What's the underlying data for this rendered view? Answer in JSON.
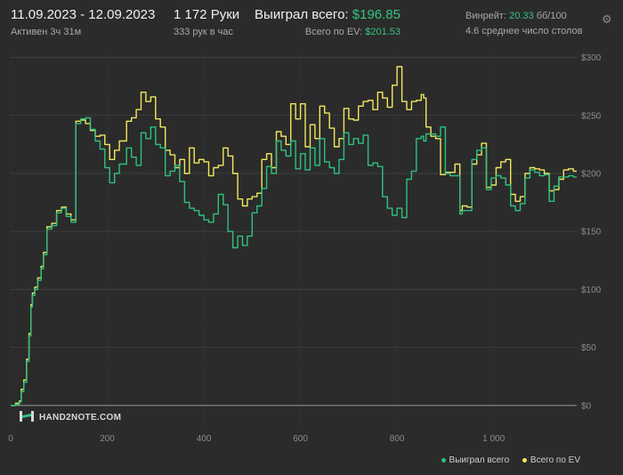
{
  "header": {
    "date_range": "11.09.2023 - 12.09.2023",
    "active_time": "Активен 3ч 31м",
    "hands_label": "1 172 Руки",
    "hands_rate": "333 рук в час",
    "won_label": "Выиграл всего:",
    "won_value": "$196.85",
    "ev_label": "Всего по EV:",
    "ev_value": "$201.53",
    "winrate_label": "Винрейт:",
    "winrate_value": "20.33",
    "winrate_unit": "бб/100",
    "tables_text": "4.6 среднее число столов"
  },
  "logo": {
    "text": "HAND2NOTE.COM"
  },
  "icons": {
    "settings": "gear-icon",
    "logo": "hand2note-logo-icon"
  },
  "colors": {
    "background": "#2b2b2b",
    "won": "#2ec27e",
    "ev": "#f2e85c",
    "grid": "#4a4a4a",
    "axis_text": "#8c8c8c",
    "accent": "#33c481"
  },
  "chart_data": {
    "type": "line",
    "x_ticks": [
      0,
      200,
      400,
      600,
      800,
      1000
    ],
    "x_tick_labels": [
      "0",
      "200",
      "400",
      "600",
      "800",
      "1 000"
    ],
    "y_ticks": [
      0,
      50,
      100,
      150,
      200,
      250,
      300
    ],
    "y_tick_labels": [
      "$0",
      "$50",
      "$100",
      "$150",
      "$200",
      "$250",
      "$300"
    ],
    "xlim": [
      0,
      1172
    ],
    "ylim": [
      -20,
      305
    ],
    "grid": true,
    "legend_position": "bottom-right",
    "series": [
      {
        "name": "Выиграл всего",
        "color": "#2ec27e",
        "x": [
          0,
          10,
          18,
          22,
          27,
          33,
          38,
          42,
          45,
          50,
          56,
          63,
          68,
          75,
          85,
          95,
          105,
          115,
          125,
          135,
          145,
          155,
          165,
          175,
          185,
          195,
          205,
          215,
          225,
          240,
          250,
          260,
          270,
          280,
          290,
          300,
          310,
          320,
          330,
          340,
          350,
          360,
          370,
          380,
          390,
          400,
          410,
          420,
          430,
          440,
          450,
          460,
          470,
          480,
          490,
          500,
          510,
          520,
          530,
          540,
          550,
          560,
          570,
          580,
          590,
          600,
          610,
          620,
          630,
          640,
          650,
          660,
          670,
          680,
          690,
          700,
          710,
          720,
          730,
          740,
          750,
          760,
          770,
          780,
          790,
          800,
          810,
          820,
          830,
          840,
          850,
          855,
          860,
          870,
          880,
          890,
          900,
          910,
          920,
          930,
          935,
          945,
          955,
          965,
          975,
          985,
          995,
          1005,
          1015,
          1025,
          1035,
          1045,
          1055,
          1065,
          1075,
          1085,
          1095,
          1105,
          1115,
          1125,
          1135,
          1145,
          1155,
          1165,
          1172
        ],
        "y": [
          0,
          1,
          3,
          12,
          20,
          38,
          60,
          85,
          95,
          100,
          108,
          118,
          130,
          152,
          155,
          166,
          170,
          163,
          158,
          243,
          247,
          248,
          238,
          228,
          221,
          205,
          192,
          200,
          208,
          222,
          214,
          207,
          235,
          230,
          240,
          225,
          222,
          198,
          202,
          207,
          193,
          175,
          170,
          168,
          164,
          160,
          158,
          165,
          182,
          173,
          150,
          136,
          146,
          138,
          146,
          166,
          172,
          187,
          206,
          200,
          228,
          220,
          215,
          228,
          204,
          217,
          203,
          222,
          207,
          230,
          210,
          205,
          200,
          212,
          235,
          225,
          230,
          226,
          233,
          207,
          209,
          206,
          180,
          170,
          164,
          170,
          162,
          195,
          202,
          230,
          232,
          228,
          234,
          234,
          232,
          240,
          200,
          198,
          198,
          165,
          168,
          168,
          212,
          220,
          222,
          186,
          196,
          198,
          196,
          190,
          172,
          168,
          174,
          196,
          203,
          201,
          198,
          199,
          176,
          189,
          197,
          197,
          198,
          197,
          197
        ],
        "values_note": ""
      },
      {
        "name": "Всего по EV",
        "color": "#f2e85c",
        "x": [
          0,
          10,
          18,
          22,
          27,
          33,
          38,
          42,
          45,
          50,
          56,
          63,
          68,
          75,
          85,
          95,
          105,
          115,
          125,
          135,
          145,
          155,
          165,
          175,
          185,
          195,
          205,
          215,
          225,
          240,
          250,
          260,
          270,
          280,
          290,
          300,
          310,
          320,
          330,
          340,
          350,
          360,
          370,
          380,
          390,
          400,
          410,
          420,
          430,
          440,
          450,
          460,
          470,
          480,
          490,
          500,
          510,
          520,
          530,
          540,
          550,
          560,
          570,
          580,
          590,
          600,
          610,
          620,
          630,
          640,
          650,
          660,
          670,
          680,
          690,
          700,
          710,
          720,
          730,
          740,
          750,
          760,
          770,
          780,
          790,
          800,
          810,
          820,
          830,
          840,
          850,
          855,
          860,
          870,
          880,
          890,
          900,
          910,
          920,
          930,
          935,
          945,
          955,
          965,
          975,
          985,
          995,
          1005,
          1015,
          1025,
          1035,
          1045,
          1055,
          1065,
          1075,
          1085,
          1095,
          1105,
          1115,
          1125,
          1135,
          1145,
          1155,
          1165,
          1172
        ],
        "y": [
          0,
          2,
          4,
          14,
          22,
          40,
          62,
          87,
          97,
          102,
          110,
          120,
          132,
          154,
          157,
          168,
          171,
          165,
          160,
          245,
          246,
          243,
          237,
          232,
          233,
          225,
          212,
          220,
          228,
          245,
          248,
          255,
          270,
          262,
          266,
          247,
          240,
          220,
          216,
          205,
          212,
          200,
          222,
          209,
          212,
          210,
          198,
          205,
          207,
          222,
          215,
          200,
          178,
          172,
          178,
          180,
          183,
          212,
          217,
          205,
          236,
          232,
          225,
          260,
          247,
          260,
          223,
          242,
          230,
          258,
          252,
          239,
          223,
          230,
          256,
          247,
          246,
          258,
          262,
          263,
          255,
          270,
          265,
          257,
          276,
          292,
          262,
          255,
          262,
          263,
          268,
          265,
          240,
          232,
          230,
          199,
          201,
          201,
          208,
          168,
          172,
          171,
          208,
          216,
          226,
          188,
          190,
          205,
          210,
          212,
          182,
          176,
          180,
          200,
          205,
          204,
          203,
          200,
          185,
          186,
          195,
          203,
          204,
          202,
          202
        ]
      }
    ]
  }
}
